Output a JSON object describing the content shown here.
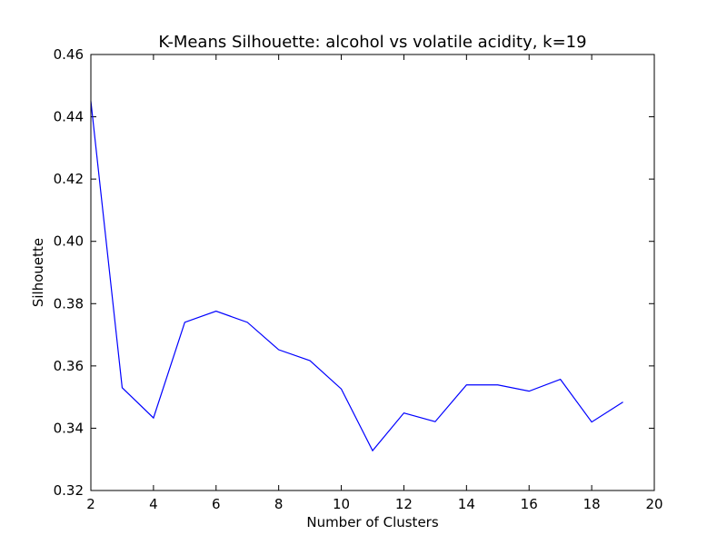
{
  "chart_data": {
    "type": "line",
    "title": "K-Means Silhouette: alcohol vs volatile acidity, k=19",
    "xlabel": "Number of Clusters",
    "ylabel": "Silhouette",
    "xlim": [
      2,
      20
    ],
    "ylim": [
      0.32,
      0.46
    ],
    "xticks": [
      2,
      4,
      6,
      8,
      10,
      12,
      14,
      16,
      18,
      20
    ],
    "xtick_labels": [
      "2",
      "4",
      "6",
      "8",
      "10",
      "12",
      "14",
      "16",
      "18",
      "20"
    ],
    "yticks": [
      0.32,
      0.34,
      0.36,
      0.38,
      0.4,
      0.42,
      0.44,
      0.46
    ],
    "ytick_labels": [
      "0.32",
      "0.34",
      "0.36",
      "0.38",
      "0.40",
      "0.42",
      "0.44",
      "0.46"
    ],
    "grid": false,
    "line_color": "#0000ff",
    "x": [
      2,
      3,
      4,
      5,
      6,
      7,
      8,
      9,
      10,
      11,
      12,
      13,
      14,
      15,
      16,
      17,
      18,
      19
    ],
    "y": [
      0.445,
      0.353,
      0.3433,
      0.374,
      0.3776,
      0.374,
      0.3652,
      0.3617,
      0.3526,
      0.3328,
      0.3449,
      0.3421,
      0.3539,
      0.3539,
      0.3519,
      0.3557,
      0.342,
      0.3484
    ]
  }
}
